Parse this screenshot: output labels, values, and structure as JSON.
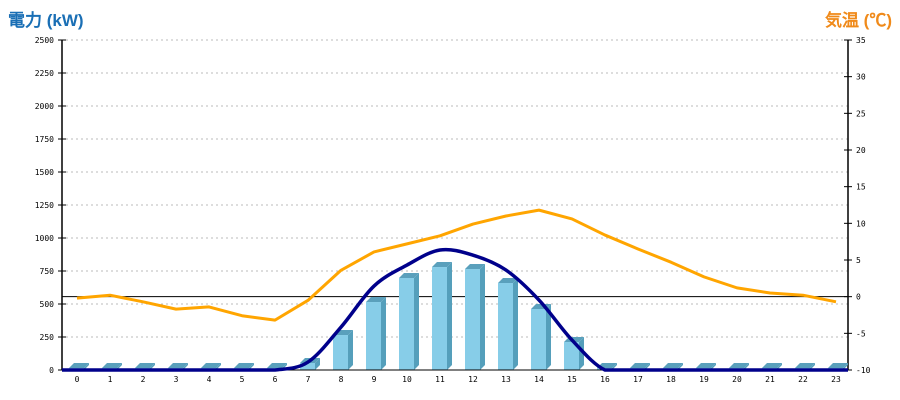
{
  "chart_data": {
    "type": "bar",
    "title_left": "電力 (kW)",
    "title_right": "気温 (℃)",
    "categories": [
      "0",
      "1",
      "2",
      "3",
      "4",
      "5",
      "6",
      "7",
      "8",
      "9",
      "10",
      "11",
      "12",
      "13",
      "14",
      "15",
      "16",
      "17",
      "18",
      "19",
      "20",
      "21",
      "22",
      "23"
    ],
    "y_left": {
      "min": 0,
      "max": 2500,
      "ticks": [
        0,
        250,
        500,
        750,
        1000,
        1250,
        1500,
        1750,
        2000,
        2250,
        2500
      ]
    },
    "y_right": {
      "min": -10,
      "max": 35,
      "ticks": [
        -10,
        -5,
        0,
        5,
        10,
        15,
        20,
        25,
        30,
        35
      ]
    },
    "grid": true,
    "series": [
      {
        "name": "power",
        "type": "bar",
        "axis": "left",
        "color": "#87cde8",
        "values": [
          0,
          0,
          0,
          0,
          0,
          0,
          0,
          53,
          265,
          515,
          697,
          780,
          765,
          659,
          462,
          212,
          10,
          0,
          0,
          0,
          0,
          0,
          0,
          0
        ]
      },
      {
        "name": "power-curve",
        "type": "line",
        "axis": "left",
        "color": "#00008b",
        "values": [
          0,
          0,
          0,
          0,
          0,
          0,
          0,
          60,
          325,
          636,
          795,
          909,
          870,
          757,
          530,
          227,
          0,
          0,
          0,
          0,
          0,
          0,
          0,
          0
        ]
      },
      {
        "name": "temperature",
        "type": "line",
        "axis": "right",
        "color": "#ffa500",
        "values": [
          -0.2,
          0.2,
          -0.7,
          -1.7,
          -1.4,
          -2.6,
          -3.2,
          -0.5,
          3.6,
          6.1,
          7.2,
          8.3,
          9.9,
          11,
          11.8,
          10.6,
          8.4,
          6.5,
          4.7,
          2.7,
          1.2,
          0.5,
          0.2,
          -0.7
        ]
      }
    ]
  }
}
